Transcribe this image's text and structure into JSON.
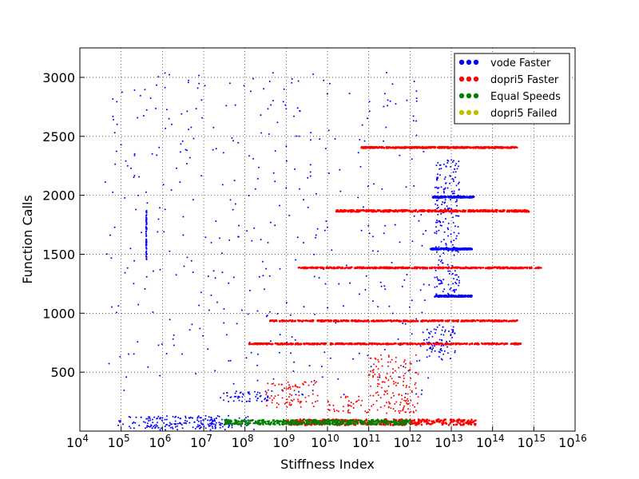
{
  "chart_data": {
    "type": "scatter",
    "xlabel": "Stiffness Index",
    "ylabel": "Function Calls",
    "x_scale": "log",
    "xlim_exponents": [
      4,
      16
    ],
    "ylim": [
      0,
      3250
    ],
    "x_ticks": [
      {
        "base": "10",
        "exp": "4"
      },
      {
        "base": "10",
        "exp": "5"
      },
      {
        "base": "10",
        "exp": "6"
      },
      {
        "base": "10",
        "exp": "7"
      },
      {
        "base": "10",
        "exp": "8"
      },
      {
        "base": "10",
        "exp": "9"
      },
      {
        "base": "10",
        "exp": "10"
      },
      {
        "base": "10",
        "exp": "11"
      },
      {
        "base": "10",
        "exp": "12"
      },
      {
        "base": "10",
        "exp": "13"
      },
      {
        "base": "10",
        "exp": "14"
      },
      {
        "base": "10",
        "exp": "15"
      },
      {
        "base": "10",
        "exp": "16"
      }
    ],
    "y_ticks": [
      "500",
      "1000",
      "1500",
      "2000",
      "2500",
      "3000"
    ],
    "grid": true,
    "legend_position": "top-right",
    "series": [
      {
        "name": "vode Faster",
        "color": "#0000ff",
        "clusters": [
          {
            "xlog": [
              4.9,
              8.3
            ],
            "y": [
              10,
              130
            ]
          },
          {
            "xlog": [
              5.6,
              7.6
            ],
            "y": [
              20,
              120
            ]
          },
          {
            "xlog": [
              7.4,
              8.6
            ],
            "y": [
              250,
              340
            ]
          },
          {
            "xlog": [
              5.6,
              5.62
            ],
            "y": [
              1450,
              1870
            ]
          },
          {
            "xlog": [
              12.55,
              13.55
            ],
            "y": [
              1980,
              1990
            ]
          },
          {
            "xlog": [
              12.5,
              13.5
            ],
            "y": [
              1540,
              1550
            ]
          },
          {
            "xlog": [
              12.6,
              13.5
            ],
            "y": [
              1140,
              1150
            ]
          },
          {
            "xlog": [
              12.4,
              13.1
            ],
            "y": [
              600,
              900
            ]
          },
          {
            "xlog": [
              12.6,
              13.2
            ],
            "y": [
              1150,
              2300
            ]
          },
          {
            "xlog": [
              4.6,
              12.5
            ],
            "y": [
              300,
              3050
            ]
          }
        ]
      },
      {
        "name": "dopri5 Faster",
        "color": "#ff0000",
        "clusters": [
          {
            "xlog": [
              9.0,
              13.6
            ],
            "y": [
              50,
              100
            ]
          },
          {
            "xlog": [
              10.0,
              12.2
            ],
            "y": [
              150,
              300
            ]
          },
          {
            "xlog": [
              11.0,
              12.2
            ],
            "y": [
              300,
              650
            ]
          },
          {
            "xlog": [
              10.8,
              14.6
            ],
            "y": [
              2400,
              2410
            ]
          },
          {
            "xlog": [
              10.2,
              14.9
            ],
            "y": [
              1860,
              1875
            ]
          },
          {
            "xlog": [
              9.3,
              15.2
            ],
            "y": [
              1380,
              1390
            ]
          },
          {
            "xlog": [
              8.6,
              14.6
            ],
            "y": [
              930,
              940
            ]
          },
          {
            "xlog": [
              8.1,
              14.7
            ],
            "y": [
              735,
              745
            ]
          },
          {
            "xlog": [
              8.5,
              9.8
            ],
            "y": [
              200,
              420
            ]
          }
        ]
      },
      {
        "name": "Equal Speeds",
        "color": "#008000",
        "clusters": [
          {
            "xlog": [
              7.5,
              12.0
            ],
            "y": [
              55,
              95
            ]
          }
        ]
      },
      {
        "name": "dopri5 Failed",
        "color": "#bfbf00",
        "clusters": []
      }
    ]
  }
}
